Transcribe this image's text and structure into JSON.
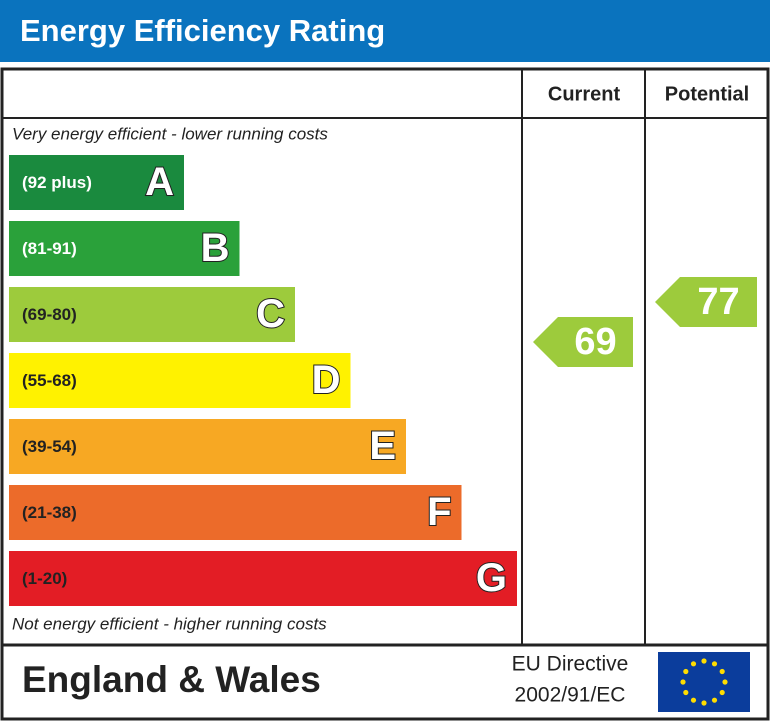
{
  "title": "Energy Efficiency Rating",
  "columns": [
    "Current",
    "Potential"
  ],
  "top_note": "Very energy efficient - lower running costs",
  "bottom_note": "Not energy efficient - higher running costs",
  "bands": [
    {
      "range": "(92 plus)",
      "letter": "A",
      "color": "#1a8a3e",
      "text_color": "#ffffff"
    },
    {
      "range": "(81-91)",
      "letter": "B",
      "color": "#2aa13a",
      "text_color": "#ffffff"
    },
    {
      "range": "(69-80)",
      "letter": "C",
      "color": "#9dcb3c",
      "text_color": "#222222"
    },
    {
      "range": "(55-68)",
      "letter": "D",
      "color": "#fff200",
      "text_color": "#222222"
    },
    {
      "range": "(39-54)",
      "letter": "E",
      "color": "#f7a823",
      "text_color": "#222222"
    },
    {
      "range": "(21-38)",
      "letter": "F",
      "color": "#ec6b2a",
      "text_color": "#222222"
    },
    {
      "range": "(1-20)",
      "letter": "G",
      "color": "#e31d25",
      "text_color": "#222222"
    }
  ],
  "ratings": {
    "current": 69,
    "potential": 77
  },
  "footer": {
    "region": "England & Wales",
    "directive": [
      "EU Directive",
      "2002/91/EC"
    ]
  }
}
